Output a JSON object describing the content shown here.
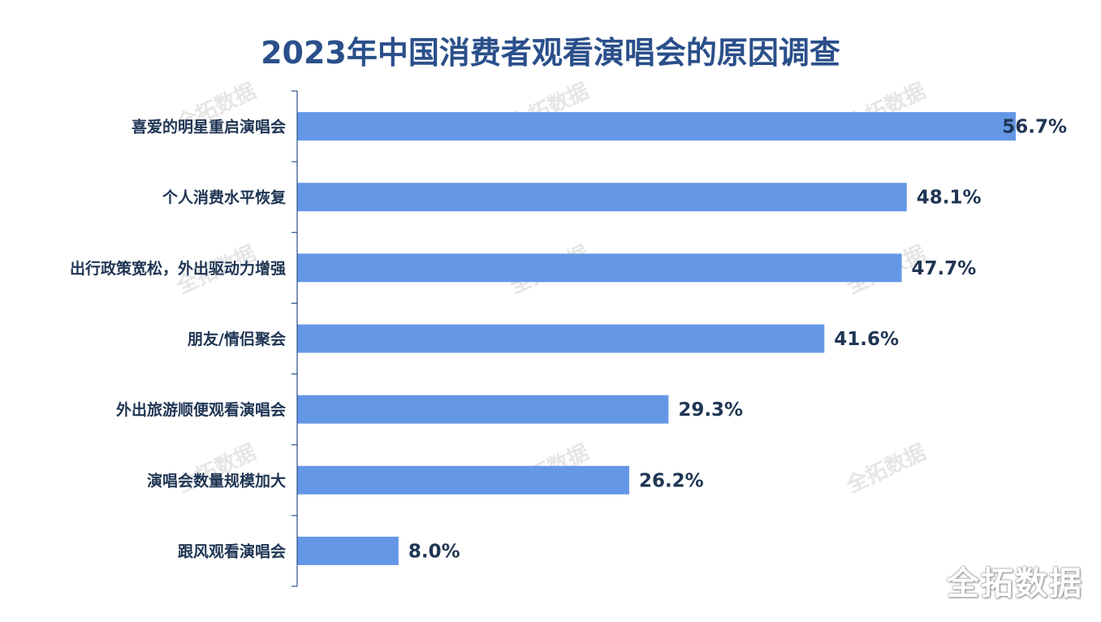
{
  "chart_data": {
    "type": "bar",
    "orientation": "horizontal",
    "title": "2023年中国消费者观看演唱会的原因调查",
    "categories": [
      "喜爱的明星重启演唱会",
      "个人消费水平恢复",
      "出行政策宽松，外出驱动力增强",
      "朋友/情侣聚会",
      "外出旅游顺便观看演唱会",
      "演唱会数量规模加大",
      "跟风观看演唱会"
    ],
    "values": [
      56.7,
      48.1,
      47.7,
      41.6,
      29.3,
      26.2,
      8.0
    ],
    "value_labels": [
      "56.7%",
      "48.1%",
      "47.7%",
      "41.6%",
      "29.3%",
      "26.2%",
      "8.0%"
    ],
    "xlim": [
      0,
      60
    ],
    "bar_color": "#6497e6",
    "axis_color": "#2a4f8a",
    "grid": false
  },
  "watermark": {
    "text": "全拓数据"
  }
}
